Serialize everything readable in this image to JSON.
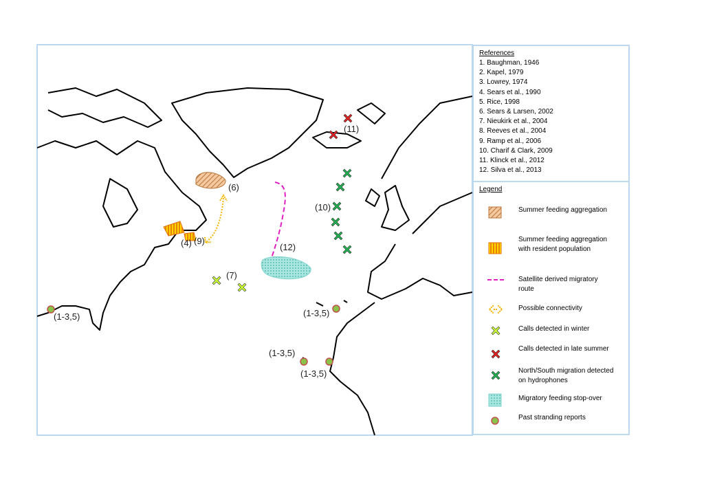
{
  "references": {
    "title": "References",
    "items": [
      "1. Baughman, 1946",
      "2. Kapel, 1979",
      "3. Lowrey, 1974",
      "4. Sears et al., 1990",
      "5. Rice, 1998",
      "6. Sears & Larsen, 2002",
      "7. Nieukirk et al., 2004",
      "8. Reeves et al., 2004",
      "9. Ramp et al., 2006",
      "10. Charif & Clark, 2009",
      "11. Klinck et al., 2012",
      "12. Silva et al., 2013"
    ]
  },
  "legend": {
    "title": "Legend",
    "items": [
      "Summer feeding aggregation",
      "Summer feeding aggregation with resident population",
      "Satellite derived migratory route",
      "Possible connectivity",
      "Calls detected in winter",
      "Calls detected in late summer",
      "North/South migration detected on hydrophones",
      "Migratory feeding stop-over",
      "Past stranding reports"
    ]
  },
  "map_labels": [
    "(11)",
    "(6)",
    "(10)",
    "(12)",
    "(4)",
    "(9)",
    "(7)",
    "(1-3,5)",
    "(1-3,5)",
    "(1-3,5)",
    "(1-3,5)"
  ]
}
